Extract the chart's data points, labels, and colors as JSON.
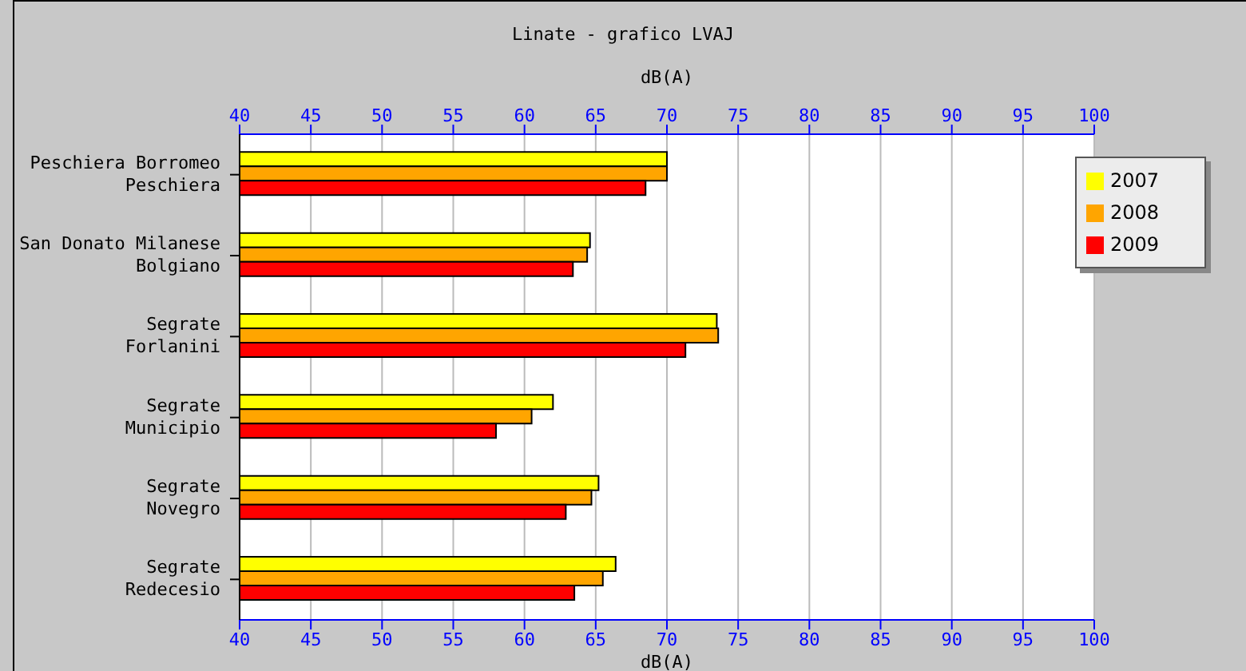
{
  "chart_data": {
    "type": "bar",
    "orientation": "horizontal",
    "title": "Linate - grafico LVAJ",
    "xlabel": "dB(A)",
    "x2label": "dB(A)",
    "categories": [
      "Peschiera Borromeo\nPeschiera",
      "San Donato Milanese\nBolgiano",
      "Segrate\nForlanini",
      "Segrate\nMunicipio",
      "Segrate\nNovegro",
      "Segrate\nRedecesio"
    ],
    "series": [
      {
        "name": "2007",
        "color": "#ffff00",
        "values": [
          70.0,
          64.6,
          73.5,
          62.0,
          65.2,
          66.4
        ]
      },
      {
        "name": "2008",
        "color": "#ffa500",
        "values": [
          70.0,
          64.4,
          73.6,
          60.5,
          64.7,
          65.5
        ]
      },
      {
        "name": "2009",
        "color": "#ff0000",
        "values": [
          68.5,
          63.4,
          71.3,
          58.0,
          62.9,
          63.5
        ]
      }
    ],
    "xlim": [
      40,
      100
    ],
    "xticks": [
      40,
      45,
      50,
      55,
      60,
      65,
      70,
      75,
      80,
      85,
      90,
      95,
      100
    ],
    "x2lim": [
      40,
      100
    ],
    "x2ticks": [
      40,
      45,
      50,
      55,
      60,
      65,
      70,
      75,
      80,
      85,
      90,
      95,
      100
    ],
    "grid": "x",
    "legend": "top right"
  }
}
